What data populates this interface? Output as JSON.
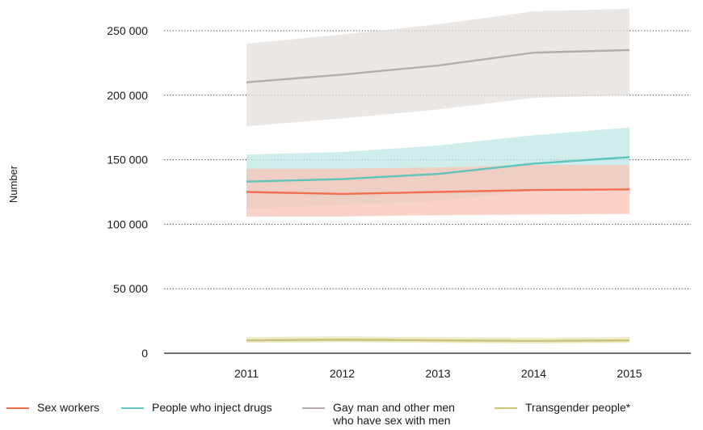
{
  "chart_data": {
    "type": "line",
    "title": "",
    "xlabel": "",
    "ylabel": "Number",
    "x": [
      "2011",
      "2012",
      "2013",
      "2014",
      "2015"
    ],
    "ylim": [
      0,
      260000
    ],
    "yticks": [
      0,
      50000,
      100000,
      150000,
      200000,
      250000
    ],
    "ytick_labels": [
      "0",
      "50 000",
      "100 000",
      "150 000",
      "200 000",
      "250 000"
    ],
    "grid": "dotted horizontal",
    "legend_position": "bottom",
    "series": [
      {
        "name": "Gay man and other men\nwho have sex with men",
        "color": "#b5aca8",
        "band_color": "#e3dfdc",
        "values": [
          210000,
          216000,
          223000,
          233000,
          235000
        ],
        "lower": [
          176000,
          182000,
          189000,
          198000,
          200000
        ],
        "upper": [
          240000,
          247000,
          255000,
          265000,
          267000
        ]
      },
      {
        "name": "People who inject drugs",
        "color": "#5ec4bc",
        "band_color": "#bfe7e4",
        "values": [
          133000,
          135000,
          139000,
          147000,
          152000
        ],
        "lower": [
          112000,
          115000,
          118000,
          126000,
          128000
        ],
        "upper": [
          154000,
          156000,
          161000,
          169000,
          175000
        ]
      },
      {
        "name": "Sex workers",
        "color": "#f26e4f",
        "band_color": "#f9c3b5",
        "values": [
          125000,
          123500,
          125000,
          126500,
          127000
        ],
        "lower": [
          106000,
          106000,
          107000,
          107500,
          108000
        ],
        "upper": [
          143000,
          143000,
          144000,
          146000,
          146000
        ]
      },
      {
        "name": "Transgender people*",
        "color": "#c8c27a",
        "band_color": "#e8e4b8",
        "values": [
          10000,
          10500,
          10000,
          9500,
          10000
        ],
        "lower": [
          8000,
          8500,
          8000,
          7500,
          8000
        ],
        "upper": [
          12500,
          13000,
          12500,
          12000,
          12500
        ]
      }
    ],
    "legend_order": [
      "Sex workers",
      "People who inject drugs",
      "Gay man and other men\nwho have sex with men",
      "Transgender people*"
    ]
  }
}
